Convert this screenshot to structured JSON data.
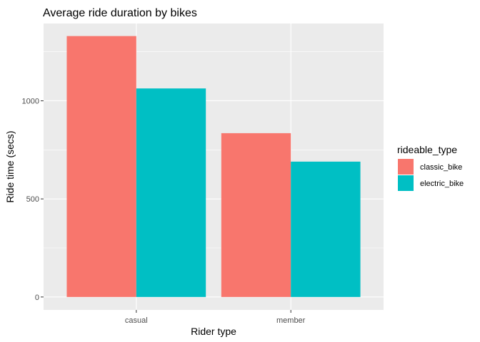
{
  "chart_data": {
    "type": "bar",
    "title": "Average ride duration by bikes",
    "xlabel": "Rider type",
    "ylabel": "Ride time (secs)",
    "categories": [
      "casual",
      "member"
    ],
    "series": [
      {
        "name": "classic_bike",
        "values": [
          1330,
          835
        ],
        "color": "#F8766D"
      },
      {
        "name": "electric_bike",
        "values": [
          1063,
          690
        ],
        "color": "#00BFC4"
      }
    ],
    "ylim": [
      -66,
      1394
    ],
    "yticks": [
      0,
      500,
      1000
    ],
    "ytick_labels": [
      "0",
      "500",
      "1000"
    ],
    "legend": {
      "title": "rideable_type",
      "position": "right"
    },
    "grid": true,
    "panel_background": "#EBEBEB",
    "grid_color": "#FFFFFF"
  }
}
